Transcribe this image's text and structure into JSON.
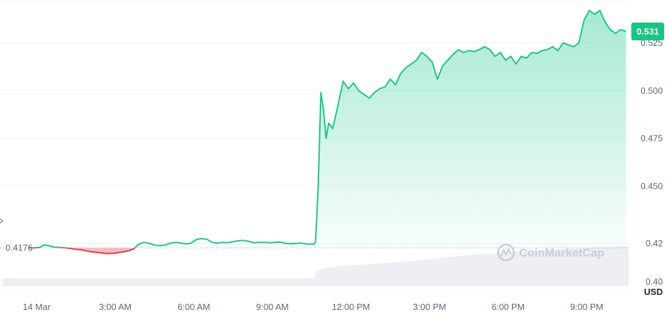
{
  "chart_data": {
    "type": "area",
    "y_unit": "USD",
    "ylim": [
      0.389,
      0.5475
    ],
    "y_ticks": [
      {
        "value": 0.4,
        "label": "0.40"
      },
      {
        "value": 0.42,
        "label": "0.42"
      },
      {
        "value": 0.45,
        "label": "0.450"
      },
      {
        "value": 0.475,
        "label": "0.475"
      },
      {
        "value": 0.5,
        "label": "0.500"
      },
      {
        "value": 0.525,
        "label": "0.525"
      }
    ],
    "x_ticks": [
      "14 Mar",
      "3:00 AM",
      "6:00 AM",
      "9:00 AM",
      "12:00 PM",
      "3:00 PM",
      "6:00 PM",
      "9:00 PM"
    ],
    "x_tick_hours": [
      0,
      3,
      6,
      9,
      12,
      15,
      18,
      21
    ],
    "x_range_hours": [
      -1.4,
      22.6
    ],
    "open_price": 0.4176,
    "open_label": "0.4176",
    "current_price": 0.531,
    "current_label": "0.531",
    "watermark": "CoinMarketCap",
    "colors": {
      "up": "#16c784",
      "down": "#ea3943",
      "grid": "#eff2f5",
      "text": "#58667e"
    },
    "series": [
      {
        "x": [
          -0.3,
          -0.1,
          0.1,
          0.3,
          0.5,
          0.7,
          0.9,
          1.1,
          1.3,
          1.5,
          1.7,
          1.9,
          2.1,
          2.3,
          2.5,
          2.7,
          2.9,
          3.1,
          3.3,
          3.5,
          3.7,
          3.9,
          4.1,
          4.3,
          4.5,
          4.7,
          4.9,
          5.1,
          5.3,
          5.5,
          5.7,
          5.9,
          6.1,
          6.3,
          6.5,
          6.7,
          6.9,
          7.1,
          7.3,
          7.5,
          7.7,
          7.9,
          8.1,
          8.3,
          8.5,
          8.7,
          8.9,
          9.1,
          9.3,
          9.5,
          9.7,
          9.9,
          10.1,
          10.3,
          10.5,
          10.6,
          10.65,
          10.75,
          10.85,
          10.95,
          11.05,
          11.15,
          11.3,
          11.5,
          11.7,
          11.9,
          12.1,
          12.3,
          12.5,
          12.7,
          12.9,
          13.1,
          13.3,
          13.5,
          13.7,
          13.9,
          14.1,
          14.3,
          14.5,
          14.7,
          14.9,
          15.1,
          15.3,
          15.5,
          15.7,
          15.9,
          16.1,
          16.3,
          16.5,
          16.7,
          16.9,
          17.1,
          17.3,
          17.5,
          17.7,
          17.9,
          18.1,
          18.3,
          18.5,
          18.7,
          18.9,
          19.1,
          19.3,
          19.5,
          19.7,
          19.9,
          20.1,
          20.3,
          20.5,
          20.7,
          20.9,
          21.1,
          21.3,
          21.5,
          21.7,
          21.9,
          22.1,
          22.3,
          22.5
        ],
        "values": [
          0.4176,
          0.4176,
          0.4178,
          0.4192,
          0.4186,
          0.4179,
          0.4178,
          0.4176,
          0.4173,
          0.4168,
          0.4166,
          0.416,
          0.4155,
          0.4152,
          0.4149,
          0.4146,
          0.4147,
          0.415,
          0.4155,
          0.416,
          0.417,
          0.4195,
          0.4205,
          0.42,
          0.419,
          0.4188,
          0.419,
          0.42,
          0.4205,
          0.4202,
          0.4196,
          0.4201,
          0.422,
          0.4225,
          0.4221,
          0.4205,
          0.4201,
          0.4205,
          0.4203,
          0.4208,
          0.4213,
          0.4215,
          0.421,
          0.4203,
          0.4205,
          0.4205,
          0.4203,
          0.4205,
          0.4207,
          0.42,
          0.4197,
          0.4199,
          0.4201,
          0.4196,
          0.4196,
          0.4196,
          0.421,
          0.45,
          0.499,
          0.49,
          0.475,
          0.483,
          0.48,
          0.492,
          0.505,
          0.501,
          0.504,
          0.5,
          0.498,
          0.496,
          0.499,
          0.501,
          0.502,
          0.506,
          0.503,
          0.509,
          0.512,
          0.514,
          0.516,
          0.52,
          0.518,
          0.515,
          0.506,
          0.513,
          0.516,
          0.519,
          0.5215,
          0.52,
          0.521,
          0.5205,
          0.5215,
          0.523,
          0.5215,
          0.518,
          0.52,
          0.516,
          0.518,
          0.514,
          0.518,
          0.517,
          0.52,
          0.5195,
          0.521,
          0.5215,
          0.523,
          0.521,
          0.525,
          0.524,
          0.523,
          0.525,
          0.537,
          0.542,
          0.54,
          0.542,
          0.536,
          0.532,
          0.53,
          0.532,
          0.531
        ]
      }
    ],
    "volume": {
      "x": [
        -1.3,
        10.6,
        10.7,
        11.0,
        11.5,
        12.0,
        13.0,
        14.0,
        15.0,
        16.0,
        17.0,
        18.0,
        19.0,
        20.0,
        21.0,
        22.0,
        22.6
      ],
      "values": [
        1.3,
        1.3,
        2.6,
        3.0,
        3.3,
        3.5,
        3.8,
        4.1,
        4.5,
        5.0,
        5.4,
        5.7,
        6.0,
        6.2,
        6.4,
        6.6,
        6.7
      ]
    }
  }
}
